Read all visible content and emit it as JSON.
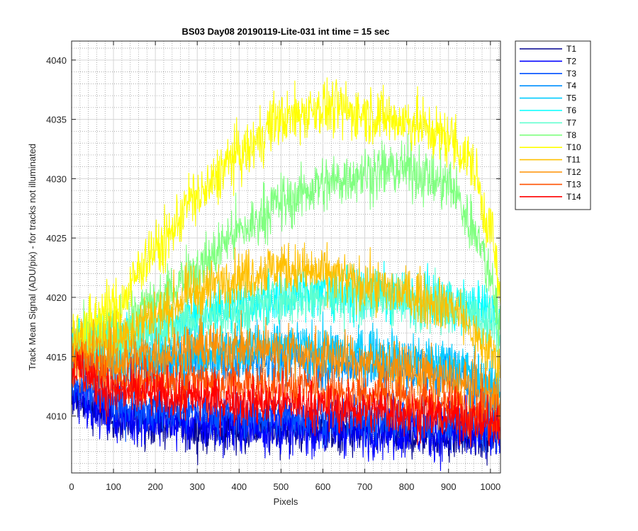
{
  "chart_data": {
    "type": "line",
    "title": "BS03 Day08 20190119-Lite-031 int time = 15 sec",
    "xlabel": "Pixels",
    "ylabel": "Track Mean Signal (ADU/pix) - for tracks not illuminated",
    "xlim": [
      0,
      1024
    ],
    "ylim": [
      4005.2,
      4041.6
    ],
    "xticks": [
      0,
      100,
      200,
      300,
      400,
      500,
      600,
      700,
      800,
      900,
      1000
    ],
    "yticks": [
      4010,
      4015,
      4020,
      4025,
      4030,
      4035,
      4040
    ],
    "grid": true,
    "minor_grid": true,
    "legend_position": "outside-top-right",
    "series": [
      {
        "name": "T1",
        "color": "#00008f",
        "profile": [
          [
            0,
            4011.5
          ],
          [
            100,
            4009.8
          ],
          [
            300,
            4009.0
          ],
          [
            500,
            4008.8
          ],
          [
            700,
            4008.6
          ],
          [
            900,
            4008.3
          ],
          [
            1024,
            4008.0
          ]
        ],
        "noise": 1.0
      },
      {
        "name": "T2",
        "color": "#0000ff",
        "profile": [
          [
            0,
            4012.0
          ],
          [
            100,
            4010.0
          ],
          [
            300,
            4009.3
          ],
          [
            500,
            4009.0
          ],
          [
            700,
            4008.8
          ],
          [
            900,
            4008.5
          ],
          [
            1024,
            4008.3
          ]
        ],
        "noise": 1.1
      },
      {
        "name": "T3",
        "color": "#0050ff",
        "profile": [
          [
            0,
            4013.0
          ],
          [
            100,
            4011.0
          ],
          [
            300,
            4010.3
          ],
          [
            500,
            4010.0
          ],
          [
            700,
            4009.8
          ],
          [
            900,
            4009.5
          ],
          [
            1024,
            4009.2
          ]
        ],
        "noise": 1.0
      },
      {
        "name": "T4",
        "color": "#0090ff",
        "profile": [
          [
            0,
            4015.0
          ],
          [
            100,
            4013.8
          ],
          [
            300,
            4014.5
          ],
          [
            500,
            4014.8
          ],
          [
            700,
            4014.2
          ],
          [
            900,
            4013.5
          ],
          [
            1024,
            4011.5
          ]
        ],
        "noise": 1.1
      },
      {
        "name": "T5",
        "color": "#00ccff",
        "profile": [
          [
            0,
            4015.5
          ],
          [
            100,
            4014.8
          ],
          [
            300,
            4015.5
          ],
          [
            500,
            4015.8
          ],
          [
            700,
            4015.3
          ],
          [
            900,
            4014.5
          ],
          [
            1024,
            4012.5
          ]
        ],
        "noise": 1.1
      },
      {
        "name": "T6",
        "color": "#00ffff",
        "profile": [
          [
            0,
            4016.5
          ],
          [
            100,
            4016.5
          ],
          [
            200,
            4017.5
          ],
          [
            300,
            4018.5
          ],
          [
            400,
            4019.3
          ],
          [
            500,
            4020.0
          ],
          [
            600,
            4020.5
          ],
          [
            700,
            4020.3
          ],
          [
            800,
            4020.0
          ],
          [
            900,
            4019.5
          ],
          [
            1000,
            4019.0
          ],
          [
            1024,
            4018.5
          ]
        ],
        "noise": 1.1
      },
      {
        "name": "T7",
        "color": "#60ffd0",
        "profile": [
          [
            0,
            4016.2
          ],
          [
            100,
            4016.2
          ],
          [
            200,
            4017.2
          ],
          [
            300,
            4018.2
          ],
          [
            400,
            4019.0
          ],
          [
            500,
            4019.8
          ],
          [
            600,
            4020.2
          ],
          [
            700,
            4020.0
          ],
          [
            800,
            4019.7
          ],
          [
            900,
            4019.2
          ],
          [
            1000,
            4018.0
          ],
          [
            1024,
            4016.0
          ]
        ],
        "noise": 1.1
      },
      {
        "name": "T8",
        "color": "#80ff80",
        "profile": [
          [
            0,
            4016.0
          ],
          [
            100,
            4017.0
          ],
          [
            200,
            4019.5
          ],
          [
            300,
            4022.5
          ],
          [
            400,
            4025.5
          ],
          [
            500,
            4028.0
          ],
          [
            600,
            4029.5
          ],
          [
            700,
            4030.5
          ],
          [
            800,
            4030.8
          ],
          [
            900,
            4029.5
          ],
          [
            960,
            4026.0
          ],
          [
            1000,
            4022.0
          ],
          [
            1024,
            4017.5
          ]
        ],
        "noise": 1.2
      },
      {
        "name": "T10",
        "color": "#ffff00",
        "profile": [
          [
            0,
            4017.0
          ],
          [
            100,
            4019.0
          ],
          [
            200,
            4024.0
          ],
          [
            300,
            4028.5
          ],
          [
            400,
            4032.0
          ],
          [
            500,
            4035.0
          ],
          [
            600,
            4036.0
          ],
          [
            700,
            4035.5
          ],
          [
            800,
            4034.8
          ],
          [
            900,
            4033.5
          ],
          [
            950,
            4031.5
          ],
          [
            1000,
            4026.0
          ],
          [
            1024,
            4020.0
          ]
        ],
        "noise": 1.2
      },
      {
        "name": "T11",
        "color": "#ffc000",
        "profile": [
          [
            0,
            4016.0
          ],
          [
            100,
            4016.5
          ],
          [
            200,
            4018.5
          ],
          [
            300,
            4020.5
          ],
          [
            400,
            4021.8
          ],
          [
            500,
            4022.5
          ],
          [
            600,
            4022.0
          ],
          [
            700,
            4021.0
          ],
          [
            800,
            4020.3
          ],
          [
            900,
            4019.3
          ],
          [
            1000,
            4015.5
          ],
          [
            1024,
            4014.0
          ]
        ],
        "noise": 1.1
      },
      {
        "name": "T12",
        "color": "#ff9000",
        "profile": [
          [
            0,
            4015.0
          ],
          [
            100,
            4014.5
          ],
          [
            200,
            4015.2
          ],
          [
            300,
            4015.8
          ],
          [
            400,
            4015.8
          ],
          [
            500,
            4015.5
          ],
          [
            600,
            4015.0
          ],
          [
            700,
            4014.5
          ],
          [
            800,
            4013.8
          ],
          [
            900,
            4013.0
          ],
          [
            1000,
            4012.0
          ],
          [
            1024,
            4011.0
          ]
        ],
        "noise": 1.1
      },
      {
        "name": "T13",
        "color": "#ff5000",
        "profile": [
          [
            0,
            4014.5
          ],
          [
            100,
            4013.0
          ],
          [
            300,
            4013.0
          ],
          [
            500,
            4012.5
          ],
          [
            700,
            4012.0
          ],
          [
            900,
            4011.0
          ],
          [
            1024,
            4010.0
          ]
        ],
        "noise": 1.0
      },
      {
        "name": "T14",
        "color": "#ff0000",
        "profile": [
          [
            0,
            4014.0
          ],
          [
            100,
            4012.0
          ],
          [
            300,
            4011.5
          ],
          [
            500,
            4011.0
          ],
          [
            700,
            4010.5
          ],
          [
            900,
            4010.0
          ],
          [
            1024,
            4009.2
          ]
        ],
        "noise": 1.0
      }
    ]
  }
}
